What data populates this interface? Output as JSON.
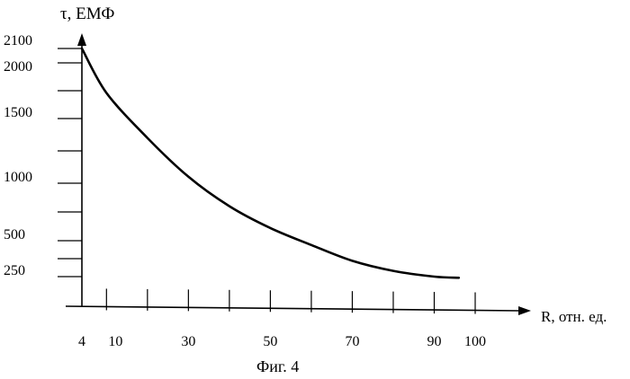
{
  "chart_data": {
    "type": "line",
    "ylabel": "τ, ЕМФ",
    "xlabel": "R, отн. ед.",
    "caption": "Фиг. 4",
    "x_tick_labels": [
      "4",
      "10",
      "30",
      "50",
      "70",
      "90",
      "100"
    ],
    "y_tick_labels": [
      "2100",
      "2000",
      "1500",
      "1000",
      "500",
      "250"
    ],
    "series": [
      {
        "x": [
          4,
          10,
          20,
          30,
          40,
          50,
          60,
          70,
          80,
          90,
          96
        ],
        "y": [
          2100,
          1730,
          1350,
          1050,
          800,
          610,
          470,
          360,
          290,
          250,
          240
        ]
      }
    ]
  }
}
